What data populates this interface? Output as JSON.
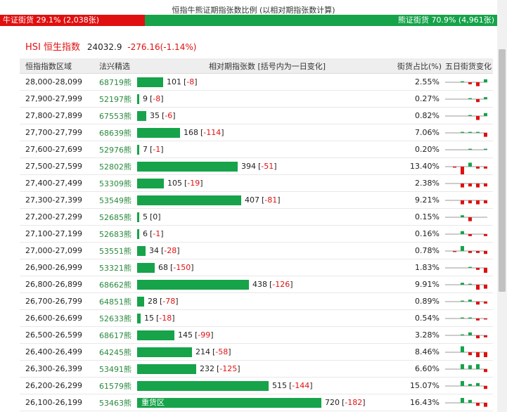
{
  "title": "恒指牛熊证期指张数比例 (以相对期指张数计算)",
  "ratio": {
    "bull_label": "牛证街货 29.1% (2,038张)",
    "bear_label": "熊证街货 70.9% (4,961张)",
    "bull_pct": 29.1,
    "bear_pct": 70.9,
    "bull_color": "#e01010",
    "bear_color": "#16a34a"
  },
  "index": {
    "name": "HSI 恒生指数",
    "value": "24032.9",
    "change": "-276.16(-1.14%)"
  },
  "headers": {
    "range": "恒指指数区域",
    "code": "法兴精选",
    "bar": "相对期指张数 [括号内为一日变化]",
    "pct": "街货占比(%)",
    "spark": "五日街货变化"
  },
  "max_count": 720,
  "rows": [
    {
      "range": "28,000-28,099",
      "code": "68719熊",
      "count": 101,
      "count_text": "101",
      "chg": "-8",
      "pct": "2.55%",
      "label": "",
      "spark": [
        0,
        -1,
        2,
        4,
        -3
      ]
    },
    {
      "range": "27,900-27,999",
      "code": "52197熊",
      "count": 9,
      "count_text": "9",
      "chg": "-8",
      "pct": "0.27%",
      "label": "",
      "spark": [
        0,
        0,
        -1,
        3,
        -2
      ]
    },
    {
      "range": "27,800-27,899",
      "code": "67553熊",
      "count": 35,
      "count_text": "35",
      "chg": "-6",
      "pct": "0.82%",
      "label": "",
      "spark": [
        0,
        0,
        -1,
        4,
        -3
      ]
    },
    {
      "range": "27,700-27,799",
      "code": "68639熊",
      "count": 168,
      "count_text": "168",
      "chg": "-114",
      "pct": "7.06%",
      "label": "",
      "spark": [
        0,
        -1,
        -1,
        -1,
        4
      ]
    },
    {
      "range": "27,600-27,699",
      "code": "52976熊",
      "count": 7,
      "count_text": "7",
      "chg": "-1",
      "pct": "0.20%",
      "label": "",
      "spark": [
        0,
        0,
        -1,
        0,
        -1
      ]
    },
    {
      "range": "27,500-27,599",
      "code": "52802熊",
      "count": 394,
      "count_text": "394",
      "chg": "-51",
      "pct": "13.40%",
      "label": "",
      "spark": [
        1,
        8,
        -4,
        2,
        2
      ]
    },
    {
      "range": "27,400-27,499",
      "code": "53309熊",
      "count": 105,
      "count_text": "105",
      "chg": "-19",
      "pct": "2.38%",
      "label": "",
      "spark": [
        0,
        4,
        3,
        4,
        3
      ]
    },
    {
      "range": "27,300-27,399",
      "code": "53549熊",
      "count": 407,
      "count_text": "407",
      "chg": "-81",
      "pct": "9.21%",
      "label": "",
      "spark": [
        0,
        4,
        3,
        4,
        3
      ]
    },
    {
      "range": "27,200-27,299",
      "code": "52685熊",
      "count": 5,
      "count_text": "5",
      "chg": "0",
      "pct": "0.15%",
      "label": "",
      "spark": [
        0,
        -2,
        4,
        0,
        0
      ]
    },
    {
      "range": "27,100-27,199",
      "code": "52683熊",
      "count": 6,
      "count_text": "6",
      "chg": "-1",
      "pct": "0.16%",
      "label": "",
      "spark": [
        0,
        -3,
        2,
        0,
        2
      ]
    },
    {
      "range": "27,000-27,099",
      "code": "53551熊",
      "count": 34,
      "count_text": "34",
      "chg": "-28",
      "pct": "0.78%",
      "label": "",
      "spark": [
        1,
        -5,
        2,
        2,
        3
      ]
    },
    {
      "range": "26,900-26,999",
      "code": "53321熊",
      "count": 68,
      "count_text": "68",
      "chg": "-150",
      "pct": "1.83%",
      "label": "",
      "spark": [
        0,
        0,
        -1,
        2,
        5
      ]
    },
    {
      "range": "26,800-26,899",
      "code": "68662熊",
      "count": 438,
      "count_text": "438",
      "chg": "-126",
      "pct": "9.91%",
      "label": "",
      "spark": [
        0,
        -2,
        -1,
        5,
        4
      ]
    },
    {
      "range": "26,700-26,799",
      "code": "64851熊",
      "count": 28,
      "count_text": "28",
      "chg": "-78",
      "pct": "0.89%",
      "label": "",
      "spark": [
        0,
        -1,
        -2,
        3,
        2
      ]
    },
    {
      "range": "26,600-26,699",
      "code": "52633熊",
      "count": 15,
      "count_text": "15",
      "chg": "-18",
      "pct": "0.54%",
      "label": "",
      "spark": [
        0,
        -1,
        -1,
        2,
        1
      ]
    },
    {
      "range": "26,500-26,599",
      "code": "68617熊",
      "count": 145,
      "count_text": "145",
      "chg": "-99",
      "pct": "3.28%",
      "label": "",
      "spark": [
        0,
        -1,
        -3,
        3,
        2
      ]
    },
    {
      "range": "26,400-26,499",
      "code": "64245熊",
      "count": 214,
      "count_text": "214",
      "chg": "-58",
      "pct": "8.46%",
      "label": "",
      "spark": [
        0,
        -6,
        3,
        5,
        5
      ]
    },
    {
      "range": "26,300-26,399",
      "code": "53491熊",
      "count": 232,
      "count_text": "232",
      "chg": "-125",
      "pct": "6.60%",
      "label": "",
      "spark": [
        0,
        -5,
        -4,
        -5,
        3
      ]
    },
    {
      "range": "26,200-26,299",
      "code": "61579熊",
      "count": 515,
      "count_text": "515",
      "chg": "-144",
      "pct": "15.07%",
      "label": "",
      "spark": [
        0,
        -5,
        -2,
        -3,
        3
      ]
    },
    {
      "range": "26,100-26,199",
      "code": "53463熊",
      "count": 720,
      "count_text": "720",
      "chg": "-182",
      "pct": "16.43%",
      "label": "重货区",
      "spark": [
        0,
        -5,
        -3,
        3,
        4
      ]
    }
  ]
}
